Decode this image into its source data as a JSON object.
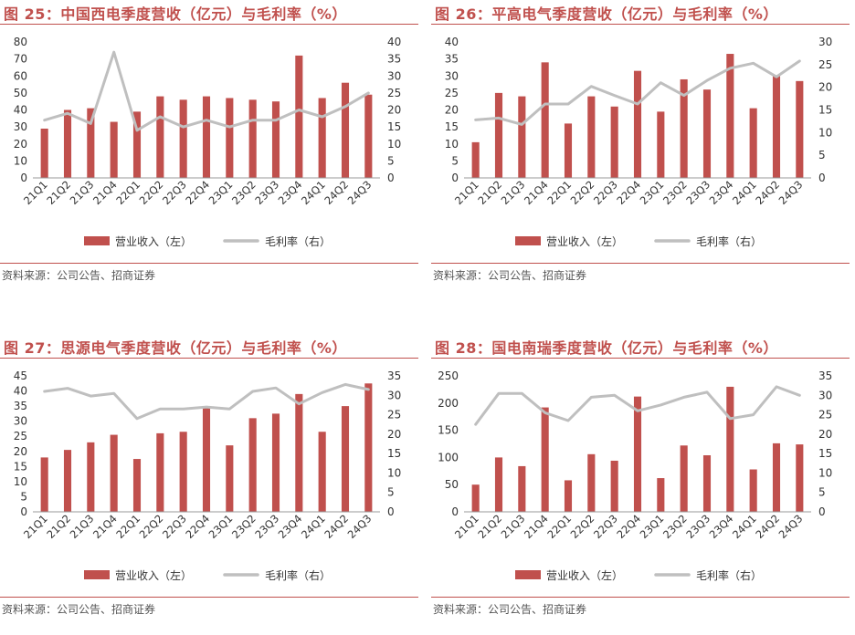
{
  "colors": {
    "bar": "#c0504d",
    "line": "#bfbfbf",
    "title": "#c0504d",
    "rule": "#c0504d"
  },
  "chart_data": [
    {
      "type": "bar",
      "title": "图 25：中国西电季度营收（亿元）与毛利率（%）",
      "source": "资料来源：公司公告、招商证券",
      "categories": [
        "21Q1",
        "21Q2",
        "21Q3",
        "21Q4",
        "22Q1",
        "22Q2",
        "22Q3",
        "22Q4",
        "23Q1",
        "23Q2",
        "23Q3",
        "23Q4",
        "24Q1",
        "24Q2",
        "24Q3"
      ],
      "series": [
        {
          "name": "营业收入（左）",
          "type": "bar",
          "axis": "left",
          "values": [
            29,
            40,
            41,
            33,
            39,
            48,
            46,
            48,
            47,
            46,
            45,
            72,
            47,
            56,
            49
          ]
        },
        {
          "name": "毛利率（右）",
          "type": "line",
          "axis": "right",
          "values": [
            17,
            19,
            16,
            37,
            14,
            18,
            15,
            17,
            15,
            17,
            17,
            20,
            18,
            21,
            25
          ]
        }
      ],
      "ylim_left": [
        0,
        80
      ],
      "ylim_right": [
        0,
        40
      ],
      "yticks_left": [
        "0",
        "10",
        "20",
        "30",
        "40",
        "50",
        "60",
        "70",
        "80"
      ],
      "yticks_right": [
        "0",
        "5",
        "10",
        "15",
        "20",
        "25",
        "30",
        "35",
        "40"
      ],
      "grid": false,
      "legend": "bottom"
    },
    {
      "type": "bar",
      "title": "图 26：平高电气季度营收（亿元）与毛利率（%）",
      "source": "资料来源：公司公告、招商证券",
      "categories": [
        "21Q1",
        "21Q2",
        "21Q3",
        "21Q4",
        "22Q1",
        "22Q2",
        "22Q3",
        "22Q4",
        "23Q1",
        "23Q2",
        "23Q3",
        "23Q4",
        "24Q1",
        "24Q2",
        "24Q3"
      ],
      "series": [
        {
          "name": "营业收入（左）",
          "type": "bar",
          "axis": "left",
          "values": [
            10.5,
            25,
            24,
            34,
            16,
            24,
            21,
            31.5,
            19.5,
            29,
            26,
            36.5,
            20.5,
            30,
            28.5
          ]
        },
        {
          "name": "毛利率（右）",
          "type": "line",
          "axis": "right",
          "values": [
            12.8,
            13.2,
            11.8,
            16.3,
            16.3,
            20.2,
            18.2,
            16.3,
            21,
            18.2,
            21.5,
            24.2,
            25.3,
            22.3,
            25.8
          ]
        }
      ],
      "ylim_left": [
        0,
        40
      ],
      "ylim_right": [
        0,
        30
      ],
      "yticks_left": [
        "0",
        "5",
        "10",
        "15",
        "20",
        "25",
        "30",
        "35",
        "40"
      ],
      "yticks_right": [
        "0",
        "5",
        "10",
        "15",
        "20",
        "25",
        "30"
      ],
      "grid": false,
      "legend": "bottom"
    },
    {
      "type": "bar",
      "title": "图 27：思源电气季度营收（亿元）与毛利率（%）",
      "source": "资料来源：公司公告、招商证券",
      "categories": [
        "21Q1",
        "21Q2",
        "21Q3",
        "21Q4",
        "22Q1",
        "22Q2",
        "22Q3",
        "22Q4",
        "23Q1",
        "23Q2",
        "23Q3",
        "23Q4",
        "24Q1",
        "24Q2",
        "24Q3"
      ],
      "series": [
        {
          "name": "营业收入（左）",
          "type": "bar",
          "axis": "left",
          "values": [
            18,
            20.5,
            23,
            25.5,
            17.5,
            26,
            26.5,
            35,
            22,
            31,
            32.5,
            39,
            26.5,
            35,
            42.5
          ]
        },
        {
          "name": "毛利率（右）",
          "type": "line",
          "axis": "right",
          "values": [
            31,
            31.8,
            29.8,
            30.5,
            24,
            26.5,
            26.5,
            27,
            26.5,
            31,
            31.9,
            27.8,
            30.7,
            32.8,
            31.5
          ]
        }
      ],
      "ylim_left": [
        0,
        45
      ],
      "ylim_right": [
        0,
        35
      ],
      "yticks_left": [
        "0",
        "5",
        "10",
        "15",
        "20",
        "25",
        "30",
        "35",
        "40",
        "45"
      ],
      "yticks_right": [
        "0",
        "5",
        "10",
        "15",
        "20",
        "25",
        "30",
        "35"
      ],
      "grid": false,
      "legend": "bottom"
    },
    {
      "type": "bar",
      "title": "图 28：国电南瑞季度营收（亿元）与毛利率（%）",
      "source": "资料来源：公司公告、招商证券",
      "categories": [
        "21Q1",
        "21Q2",
        "21Q3",
        "21Q4",
        "22Q1",
        "22Q2",
        "22Q3",
        "22Q4",
        "23Q1",
        "23Q2",
        "23Q3",
        "23Q4",
        "24Q1",
        "24Q2",
        "24Q3"
      ],
      "series": [
        {
          "name": "营业收入（左）",
          "type": "bar",
          "axis": "left",
          "values": [
            50,
            100,
            84,
            192,
            58,
            106,
            94,
            212,
            62,
            122,
            104,
            230,
            78,
            126,
            124
          ]
        },
        {
          "name": "毛利率（右）",
          "type": "line",
          "axis": "right",
          "values": [
            22.5,
            30.5,
            30.5,
            25.5,
            23.5,
            29.5,
            30,
            26,
            27.5,
            29.5,
            30.8,
            24,
            25,
            32.2,
            30
          ]
        }
      ],
      "ylim_left": [
        0,
        250
      ],
      "ylim_right": [
        0,
        35
      ],
      "yticks_left": [
        "0",
        "50",
        "100",
        "150",
        "200",
        "250"
      ],
      "yticks_right": [
        "0",
        "5",
        "10",
        "15",
        "20",
        "25",
        "30",
        "35"
      ],
      "grid": false,
      "legend": "bottom"
    }
  ]
}
